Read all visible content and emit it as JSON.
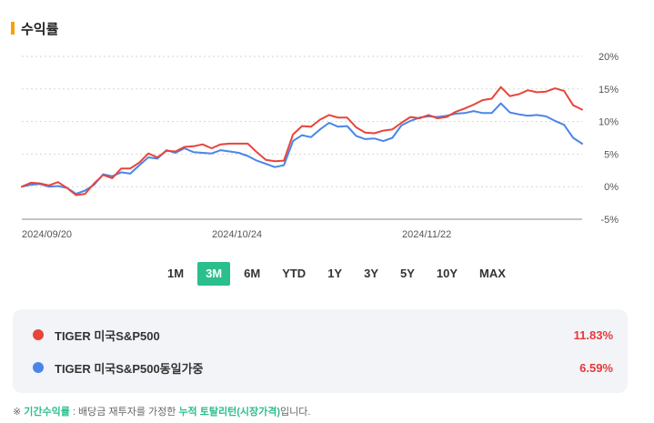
{
  "section": {
    "title": "수익률"
  },
  "chart_data": {
    "type": "line",
    "x_ticks": [
      "2024/09/20",
      "2024/10/24",
      "2024/11/22"
    ],
    "y_ticks": [
      "20%",
      "15%",
      "10%",
      "5%",
      "0%",
      "-5%"
    ],
    "ylim": [
      -5,
      20
    ],
    "grid": true,
    "series": [
      {
        "name": "TIGER 미국S&P500",
        "color": "#e8443a",
        "values": [
          0,
          0.6,
          0.5,
          0.2,
          0.7,
          -0.2,
          -1.3,
          -1.1,
          0.5,
          1.8,
          1.3,
          2.8,
          2.8,
          3.7,
          5.1,
          4.5,
          5.5,
          5.4,
          6.1,
          6.2,
          6.5,
          5.9,
          6.5,
          6.6,
          6.6,
          6.6,
          5.3,
          4.1,
          3.9,
          4.0,
          8.0,
          9.3,
          9.2,
          10.3,
          11.0,
          10.6,
          10.6,
          9.1,
          8.3,
          8.2,
          8.6,
          8.8,
          9.8,
          10.7,
          10.5,
          11.0,
          10.5,
          10.7,
          11.5,
          12.0,
          12.6,
          13.3,
          13.5,
          15.3,
          13.9,
          14.2,
          14.8,
          14.5,
          14.6,
          15.1,
          14.7,
          12.5,
          11.83
        ]
      },
      {
        "name": "TIGER 미국S&P500동일가중",
        "color": "#4a86e8",
        "values": [
          0,
          0.3,
          0.4,
          0,
          0.1,
          -0.2,
          -1.1,
          -0.6,
          0.3,
          1.9,
          1.6,
          2.2,
          2.0,
          3.3,
          4.5,
          4.3,
          5.6,
          5.2,
          5.9,
          5.3,
          5.2,
          5.1,
          5.6,
          5.4,
          5.2,
          4.7,
          4.0,
          3.5,
          3.0,
          3.3,
          7.0,
          7.9,
          7.6,
          8.8,
          9.8,
          9.2,
          9.3,
          7.8,
          7.3,
          7.4,
          7.0,
          7.5,
          9.4,
          10.1,
          10.6,
          10.8,
          10.7,
          10.9,
          11.2,
          11.3,
          11.6,
          11.3,
          11.3,
          12.8,
          11.4,
          11.1,
          10.9,
          11.0,
          10.8,
          10.1,
          9.5,
          7.5,
          6.59
        ]
      }
    ]
  },
  "periods": [
    "1M",
    "3M",
    "6M",
    "YTD",
    "1Y",
    "3Y",
    "5Y",
    "10Y",
    "MAX"
  ],
  "active_period": "3M",
  "legend": [
    {
      "name": "TIGER 미국S&P500",
      "value": "11.83%",
      "color": "#e8443a"
    },
    {
      "name": "TIGER 미국S&P500동일가중",
      "value": "6.59%",
      "color": "#4a86e8"
    }
  ],
  "footnote": {
    "mark": "※",
    "label": "기간수익률",
    "text1": " : 배당금 재투자를 가정한 ",
    "highlight": "누적 토탈리턴(시장가격)",
    "text2": "입니다."
  }
}
